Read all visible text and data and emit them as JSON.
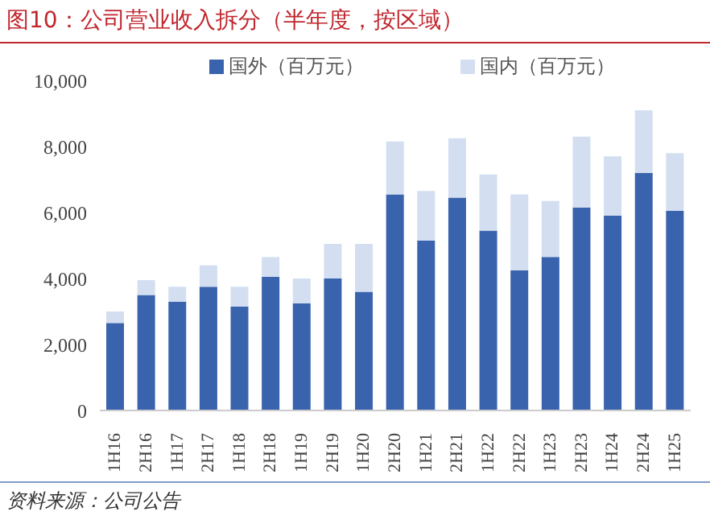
{
  "chart_data": {
    "type": "bar",
    "title": "图10：公司营业收入拆分（半年度，按区域）",
    "categories": [
      "1H16",
      "2H16",
      "1H17",
      "2H17",
      "1H18",
      "2H18",
      "1H19",
      "2H19",
      "1H20",
      "2H20",
      "1H21",
      "2H21",
      "1H22",
      "2H22",
      "1H23",
      "2H23",
      "1H24",
      "2H24",
      "1H25"
    ],
    "series": [
      {
        "name": "国外（百万元）",
        "color": "#3a63ad",
        "values": [
          2650,
          3500,
          3300,
          3750,
          3150,
          4050,
          3250,
          4000,
          3600,
          6550,
          5150,
          6450,
          5450,
          4250,
          4650,
          6150,
          5900,
          7200,
          6050
        ]
      },
      {
        "name": "国内（百万元）",
        "color": "#d3dff1",
        "values": [
          350,
          450,
          450,
          650,
          600,
          600,
          750,
          1050,
          1450,
          1600,
          1500,
          1800,
          1700,
          2300,
          1700,
          2150,
          1800,
          1900,
          1750
        ]
      }
    ],
    "stacked": true,
    "ylim": [
      0,
      10000
    ],
    "yticks": [
      {
        "value": 0,
        "label": "0"
      },
      {
        "value": 2000,
        "label": "2,000"
      },
      {
        "value": 4000,
        "label": "4,000"
      },
      {
        "value": 6000,
        "label": "6,000"
      },
      {
        "value": 8000,
        "label": "8,000"
      },
      {
        "value": 10000,
        "label": "10,000"
      }
    ],
    "grid": false,
    "legend": "top",
    "annotations": [
      "资料来源：公司公告"
    ]
  }
}
